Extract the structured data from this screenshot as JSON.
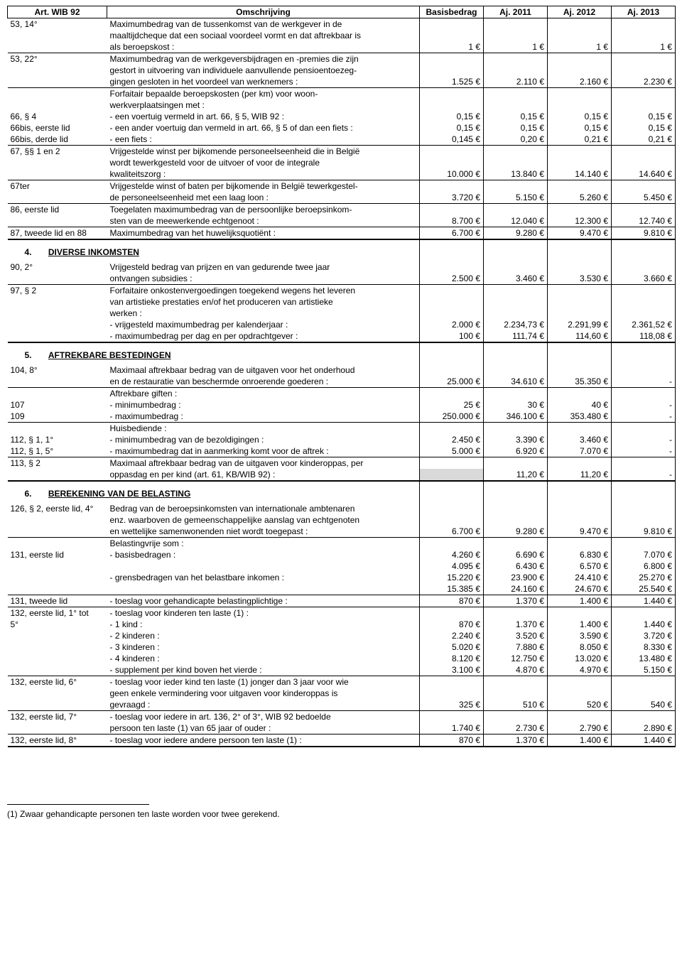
{
  "headers": {
    "art": "Art. WIB 92",
    "desc": "Omschrijving",
    "base": "Basisbedrag",
    "y1": "Aj. 2011",
    "y2": "Aj. 2012",
    "y3": "Aj. 2013"
  },
  "sections": {
    "s4_num": "4.",
    "s4_name": "DIVERSE INKOMSTEN",
    "s5_num": "5.",
    "s5_name": "AFTREKBARE BESTEDINGEN",
    "s6_num": "6.",
    "s6_name": "BEREKENING VAN DE BELASTING"
  },
  "rows": {
    "r1_art": "53, 14°",
    "r1_d1": "Maximumbedrag van de tussenkomst van de werkgever in de",
    "r1_d2": "maaltijdcheque dat een sociaal voordeel vormt en dat aftrekbaar is",
    "r1_d3": "als beroepskost :",
    "r1_b": "1 €",
    "r1_y1": "1 €",
    "r1_y2": "1 €",
    "r1_y3": "1 €",
    "r2_art": "53, 22°",
    "r2_d1": "Maximumbedrag van de werkgeversbijdragen en -premies die zijn",
    "r2_d2": "gestort in uitvoering van individuele aanvullende pensioentoezeg-",
    "r2_d3": "gingen gesloten in het voordeel van werknemers :",
    "r2_b": "1.525 €",
    "r2_y1": "2.110 €",
    "r2_y2": "2.160 €",
    "r2_y3": "2.230 €",
    "r3_d1": "Forfaitair bepaalde beroepskosten (per km) voor woon-",
    "r3_d2": "werkverplaatsingen met :",
    "r3a_art": "66, § 4",
    "r3a_d": "-  een voertuig vermeld in art. 66, § 5, WIB 92 :",
    "r3a_b": "0,15 €",
    "r3a_y1": "0,15 €",
    "r3a_y2": "0,15 €",
    "r3a_y3": "0,15 €",
    "r3b_art": "66bis, eerste lid",
    "r3b_d": "-  een ander voertuig dan vermeld in art. 66, § 5 of dan een fiets :",
    "r3b_b": "0,15 €",
    "r3b_y1": "0,15 €",
    "r3b_y2": "0,15 €",
    "r3b_y3": "0,15 €",
    "r3c_art": "66bis, derde lid",
    "r3c_d": "-  een fiets :",
    "r3c_b": "0,145 €",
    "r3c_y1": "0,20 €",
    "r3c_y2": "0,21 €",
    "r3c_y3": "0,21 €",
    "r4_art": "67, §§ 1 en 2",
    "r4_d1": "Vrijgestelde winst per bijkomende personeelseenheid die in België",
    "r4_d2": "wordt tewerkgesteld voor de uitvoer of voor de integrale",
    "r4_d3": "kwaliteitszorg :",
    "r4_b": "10.000 €",
    "r4_y1": "13.840 €",
    "r4_y2": "14.140 €",
    "r4_y3": "14.640 €",
    "r5_art": "67ter",
    "r5_d1": "Vrijgestelde winst of baten per bijkomende in België tewerkgestel-",
    "r5_d2": "de personeelseenheid met een laag loon :",
    "r5_b": "3.720 €",
    "r5_y1": "5.150 €",
    "r5_y2": "5.260 €",
    "r5_y3": "5.450 €",
    "r6_art": "86, eerste lid",
    "r6_d1": "Toegelaten maximumbedrag van de persoonlijke beroepsinkom-",
    "r6_d2": "sten van de meewerkende echtgenoot :",
    "r6_b": "8.700 €",
    "r6_y1": "12.040 €",
    "r6_y2": "12.300 €",
    "r6_y3": "12.740 €",
    "r7_art": "87, tweede lid en 88",
    "r7_d": "Maximumbedrag van het huwelijksquotiënt :",
    "r7_b": "6.700 €",
    "r7_y1": "9.280 €",
    "r7_y2": "9.470 €",
    "r7_y3": "9.810 €",
    "d1_art": "90, 2°",
    "d1_d1": "Vrijgesteld bedrag van prijzen en van gedurende twee jaar",
    "d1_d2": "ontvangen subsidies :",
    "d1_b": "2.500 €",
    "d1_y1": "3.460 €",
    "d1_y2": "3.530 €",
    "d1_y3": "3.660 €",
    "d2_art": "97, § 2",
    "d2_d1": "Forfaitaire onkostenvergoedingen toegekend wegens het leveren",
    "d2_d2": "van artistieke prestaties en/of het produceren van artistieke",
    "d2_d3": "werken :",
    "d2a_d": "-  vrijgesteld maximumbedrag per kalenderjaar :",
    "d2a_b": "2.000 €",
    "d2a_y1": "2.234,73 €",
    "d2a_y2": "2.291,99 €",
    "d2a_y3": "2.361,52 €",
    "d2b_d": "-  maximumbedrag per dag en per opdrachtgever :",
    "d2b_b": "100 €",
    "d2b_y1": "111,74 €",
    "d2b_y2": "114,60 €",
    "d2b_y3": "118,08 €",
    "a1_art": "104, 8°",
    "a1_d1": "Maximaal aftrekbaar bedrag van de uitgaven voor het onderhoud",
    "a1_d2": "en de restauratie van beschermde onroerende goederen :",
    "a1_b": "25.000 €",
    "a1_y1": "34.610 €",
    "a1_y2": "35.350 €",
    "a1_y3": "-",
    "a2_d": "Aftrekbare giften :",
    "a2a_art": "107",
    "a2a_d": "-  minimumbedrag :",
    "a2a_b": "25 €",
    "a2a_y1": "30 €",
    "a2a_y2": "40 €",
    "a2a_y3": "-",
    "a2b_art": "109",
    "a2b_d": "-  maximumbedrag :",
    "a2b_b": "250.000 €",
    "a2b_y1": "346.100 €",
    "a2b_y2": "353.480 €",
    "a2b_y3": "-",
    "a3_d": "Huisbediende :",
    "a3a_art": "112, § 1, 1°",
    "a3a_d": "-  minimumbedrag van de bezoldigingen :",
    "a3a_b": "2.450 €",
    "a3a_y1": "3.390 €",
    "a3a_y2": "3.460 €",
    "a3a_y3": "-",
    "a3b_art": "112, § 1, 5°",
    "a3b_d": "-  maximumbedrag dat in aanmerking komt voor de aftrek :",
    "a3b_b": "5.000 €",
    "a3b_y1": "6.920 €",
    "a3b_y2": "7.070 €",
    "a3b_y3": "-",
    "a4_art": "113, § 2",
    "a4_d1": "Maximaal aftrekbaar bedrag van de uitgaven voor kinderoppas, per",
    "a4_d2": "oppasdag en per kind (art. 61, KB/WIB 92) :",
    "a4_b": "",
    "a4_y1": "11,20 €",
    "a4_y2": "11,20 €",
    "a4_y3": "-",
    "b1_art": "126, § 2, eerste lid, 4°",
    "b1_d1": "Bedrag van de beroepsinkomsten van internationale ambtenaren",
    "b1_d2": "enz. waarboven de gemeenschappelijke aanslag van echtgenoten",
    "b1_d3": "en wettelijke samenwonenden niet wordt toegepast :",
    "b1_b": "6.700 €",
    "b1_y1": "9.280 €",
    "b1_y2": "9.470 €",
    "b1_y3": "9.810 €",
    "b2_d": "Belastingvrije som :",
    "b2a_art": "131, eerste lid",
    "b2a_d": "-  basisbedragen :",
    "b2a_b1": "4.260 €",
    "b2a_y11": "6.690 €",
    "b2a_y21": "6.830 €",
    "b2a_y31": "7.070 €",
    "b2a_b2": "4.095 €",
    "b2a_y12": "6.430 €",
    "b2a_y22": "6.570 €",
    "b2a_y32": "6.800 €",
    "b2b_d": "-  grensbedragen van het belastbare inkomen :",
    "b2b_b1": "15.220 €",
    "b2b_y11": "23.900 €",
    "b2b_y21": "24.410 €",
    "b2b_y31": "25.270 €",
    "b2b_b2": "15.385 €",
    "b2b_y12": "24.160 €",
    "b2b_y22": "24.670 €",
    "b2b_y32": "25.540 €",
    "b3_art": "131, tweede lid",
    "b3_d": "-  toeslag voor gehandicapte belastingplichtige :",
    "b3_b": "870 €",
    "b3_y1": "1.370 €",
    "b3_y2": "1.400 €",
    "b3_y3": "1.440 €",
    "b4_art1": "132, eerste lid, 1° tot",
    "b4_art2": "5°",
    "b4_d": "-  toeslag voor kinderen ten laste (1) :",
    "b4a_d": "-  1 kind :",
    "b4a_b": "870 €",
    "b4a_y1": "1.370 €",
    "b4a_y2": "1.400 €",
    "b4a_y3": "1.440 €",
    "b4b_d": "-  2 kinderen :",
    "b4b_b": "2.240 €",
    "b4b_y1": "3.520 €",
    "b4b_y2": "3.590 €",
    "b4b_y3": "3.720 €",
    "b4c_d": "-  3 kinderen :",
    "b4c_b": "5.020 €",
    "b4c_y1": "7.880 €",
    "b4c_y2": "8.050 €",
    "b4c_y3": "8.330 €",
    "b4d_d": "-  4 kinderen :",
    "b4d_b": "8.120 €",
    "b4d_y1": "12.750 €",
    "b4d_y2": "13.020 €",
    "b4d_y3": "13.480 €",
    "b4e_d": "-  supplement per kind boven het vierde :",
    "b4e_b": "3.100 €",
    "b4e_y1": "4.870 €",
    "b4e_y2": "4.970 €",
    "b4e_y3": "5.150 €",
    "b5_art": "132, eerste lid, 6°",
    "b5_d1": "-  toeslag voor ieder kind ten laste (1) jonger dan 3 jaar voor wie",
    "b5_d2": "geen enkele vermindering voor uitgaven voor kinderoppas is",
    "b5_d3": "gevraagd :",
    "b5_b": "325 €",
    "b5_y1": "510 €",
    "b5_y2": "520 €",
    "b5_y3": "540 €",
    "b6_art": "132, eerste lid, 7°",
    "b6_d1": "-  toeslag voor iedere in art. 136, 2° of 3°, WIB 92 bedoelde",
    "b6_d2": "persoon ten laste (1) van 65 jaar of ouder :",
    "b6_b": "1.740 €",
    "b6_y1": "2.730 €",
    "b6_y2": "2.790 €",
    "b6_y3": "2.890 €",
    "b7_art": "132, eerste lid, 8°",
    "b7_d": "-  toeslag voor iedere andere persoon ten laste (1) :",
    "b7_b": "870 €",
    "b7_y1": "1.370 €",
    "b7_y2": "1.400 €",
    "b7_y3": "1.440 €"
  },
  "footnote": "(1)  Zwaar gehandicapte personen ten laste worden voor twee gerekend."
}
